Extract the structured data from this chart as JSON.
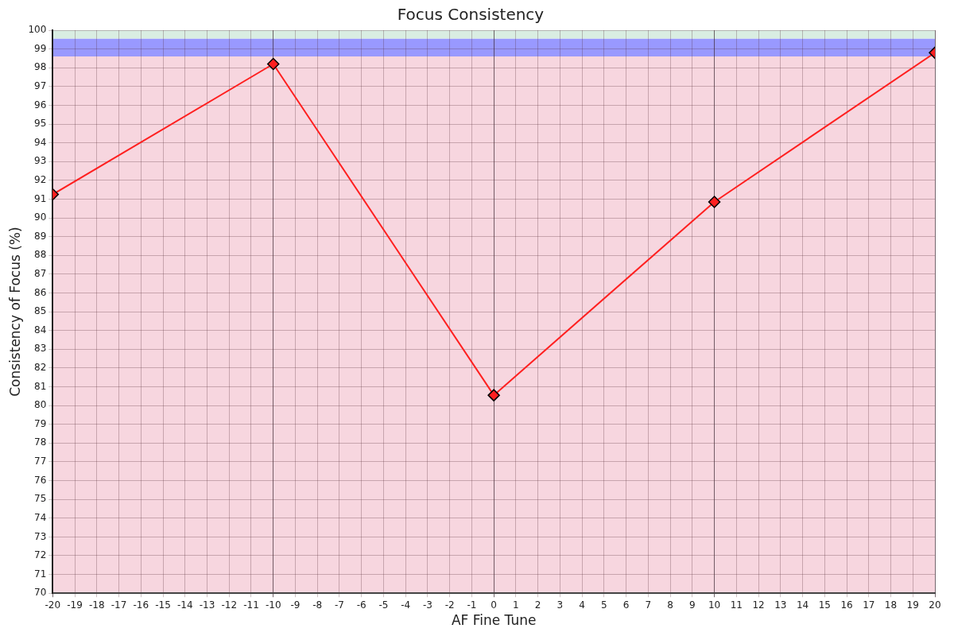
{
  "chart_data": {
    "type": "line",
    "title": "Focus Consistency",
    "xlabel": "AF Fine Tune",
    "ylabel": "Consistency of Focus (%)",
    "x": [
      -20,
      -10,
      0,
      10,
      20
    ],
    "series": [
      {
        "color": "#ff2020",
        "values": [
          91.25,
          98.2,
          80.55,
          90.85,
          98.8
        ]
      }
    ],
    "xlim": [
      -20,
      20
    ],
    "xticks": [
      -20,
      -19,
      -18,
      -17,
      -16,
      -15,
      -14,
      -13,
      -12,
      -11,
      -10,
      -9,
      -8,
      -7,
      -6,
      -5,
      -4,
      -3,
      -2,
      -1,
      0,
      1,
      2,
      3,
      4,
      5,
      6,
      7,
      8,
      9,
      10,
      11,
      12,
      13,
      14,
      15,
      16,
      17,
      18,
      19,
      20
    ],
    "ylim": [
      70,
      100
    ],
    "yticks": [
      70,
      71,
      72,
      73,
      74,
      75,
      76,
      77,
      78,
      79,
      80,
      81,
      82,
      83,
      84,
      85,
      86,
      87,
      88,
      89,
      90,
      91,
      92,
      93,
      94,
      95,
      96,
      97,
      98,
      99,
      100
    ],
    "bands": [
      {
        "axis": "y",
        "from": 70,
        "to": 98.6,
        "color": "#f7d6df"
      },
      {
        "axis": "y",
        "from": 98.6,
        "to": 99.55,
        "color": "#9999ff"
      },
      {
        "axis": "y",
        "from": 99.55,
        "to": 100,
        "color": "#d9ede2"
      }
    ],
    "grid": true,
    "marker": "diamond",
    "line_style": "solid",
    "legend": false
  }
}
